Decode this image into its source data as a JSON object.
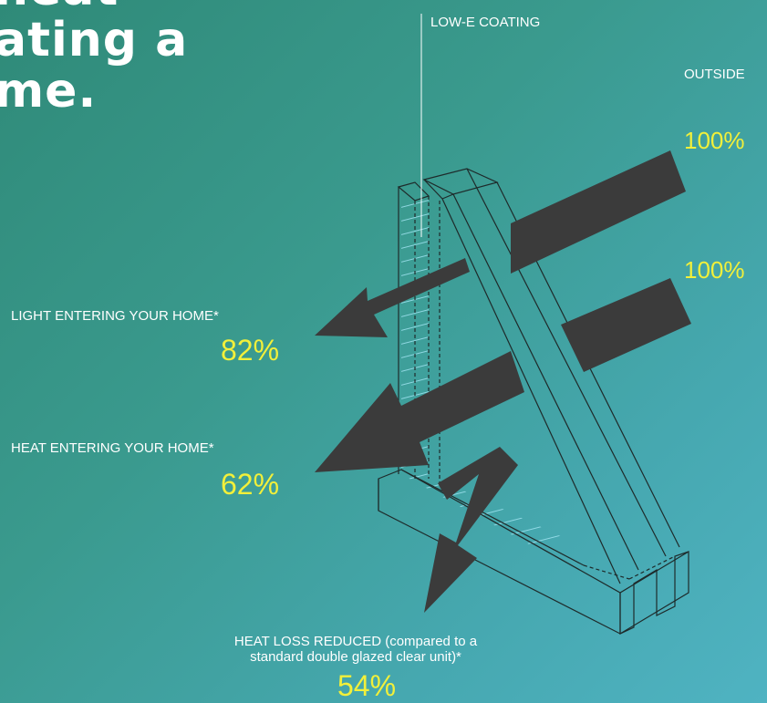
{
  "headline": {
    "line1": "heat",
    "line2": "ating a",
    "line3": "me."
  },
  "labels": {
    "low_e_coating": "LOW-E COATING",
    "outside": "OUTSIDE",
    "light_entering": "LIGHT ENTERING YOUR HOME*",
    "heat_entering": "HEAT ENTERING YOUR HOME*",
    "heat_loss_line1": "HEAT LOSS REDUCED (compared to a",
    "heat_loss_line2": "standard double glazed clear unit)*"
  },
  "values": {
    "incoming_light": "100%",
    "incoming_heat": "100%",
    "light_entering": "82%",
    "heat_entering": "62%",
    "heat_loss_reduced": "54%"
  },
  "colors": {
    "highlight": "#f2f03a",
    "arrow": "#3b3b3b",
    "line": "#1e2a2a",
    "coating": "#9fe3f0"
  }
}
